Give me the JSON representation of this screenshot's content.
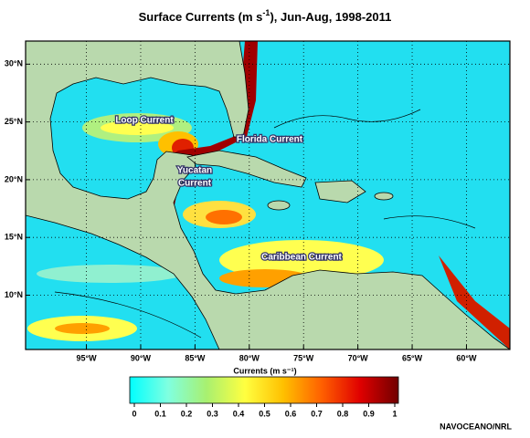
{
  "chart_data": {
    "type": "map",
    "title": {
      "main": "Surface Currents (m s",
      "superscript": "-1",
      "rest": "), Jun-Aug, 1998-2011"
    },
    "xlim": [
      -100.6,
      -56
    ],
    "ylim": [
      5.3,
      32
    ],
    "xticks": [
      {
        "value": -95,
        "label": "95°W"
      },
      {
        "value": -90,
        "label": "90°W"
      },
      {
        "value": -85,
        "label": "85°W"
      },
      {
        "value": -80,
        "label": "80°W"
      },
      {
        "value": -75,
        "label": "75°W"
      },
      {
        "value": -70,
        "label": "70°W"
      },
      {
        "value": -65,
        "label": "65°W"
      },
      {
        "value": -60,
        "label": "60°W"
      }
    ],
    "yticks": [
      {
        "value": 10,
        "label": "10°N"
      },
      {
        "value": 15,
        "label": "15°N"
      },
      {
        "value": 20,
        "label": "20°N"
      },
      {
        "value": 25,
        "label": "25°N"
      },
      {
        "value": 30,
        "label": "30°N"
      }
    ],
    "grid": true,
    "annotations": {
      "loop": "Loop Current",
      "florida": "Florida Current",
      "yucatan": [
        "Yucatan",
        "Current"
      ],
      "caribbean": "Caribbean Current"
    },
    "colorbar": {
      "label": "Currents (m s⁻¹)",
      "lim": [
        0,
        1
      ],
      "ticks": [
        0,
        0.1,
        0.2,
        0.3,
        0.4,
        0.5,
        0.6,
        0.7,
        0.8,
        0.9,
        1
      ],
      "colormap": [
        "#00ffff",
        "#80ffe0",
        "#a8f070",
        "#ffff40",
        "#ffc000",
        "#ff6000",
        "#e00000",
        "#700000"
      ]
    },
    "credit": "NAVOCEANO/NRL"
  }
}
